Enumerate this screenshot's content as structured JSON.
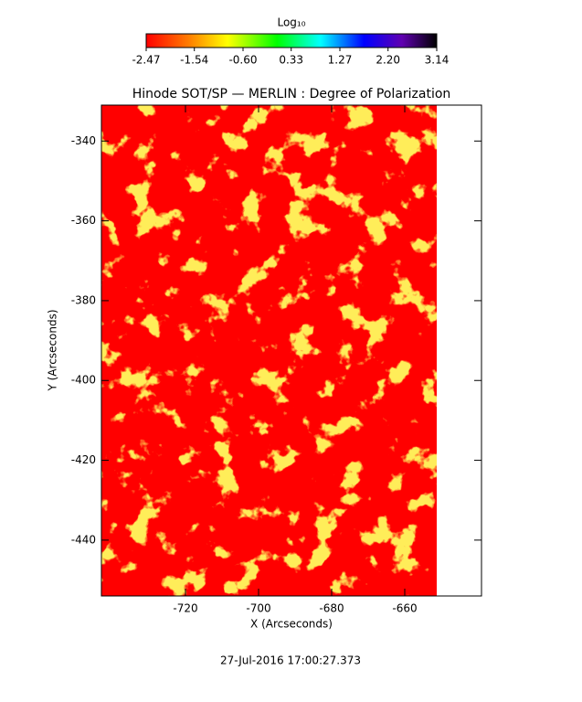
{
  "chart_data": {
    "type": "heatmap",
    "title": "Hinode SOT/SP — MERLIN : Degree of Polarization",
    "x_label": "X (Arcseconds)",
    "y_label": "Y (Arcseconds)",
    "xlim": [
      -743,
      -639
    ],
    "xticks": [
      -720,
      -700,
      -680,
      -660
    ],
    "ylim": [
      -454,
      -331
    ],
    "yticks": [
      -340,
      -360,
      -380,
      -400,
      -420,
      -440
    ],
    "colorbar_label": "Log₁₀",
    "colorbar_lim": [
      -2.47,
      3.14
    ],
    "colorbar_ticks": [
      -2.47,
      -1.54,
      {
        "value": -0.6,
        "label": "-0.60"
      },
      0.33,
      1.27,
      {
        "value": 2.2,
        "label": "2.20"
      },
      3.14
    ],
    "footer": "27-Jul-2016 17:00:27.373"
  }
}
